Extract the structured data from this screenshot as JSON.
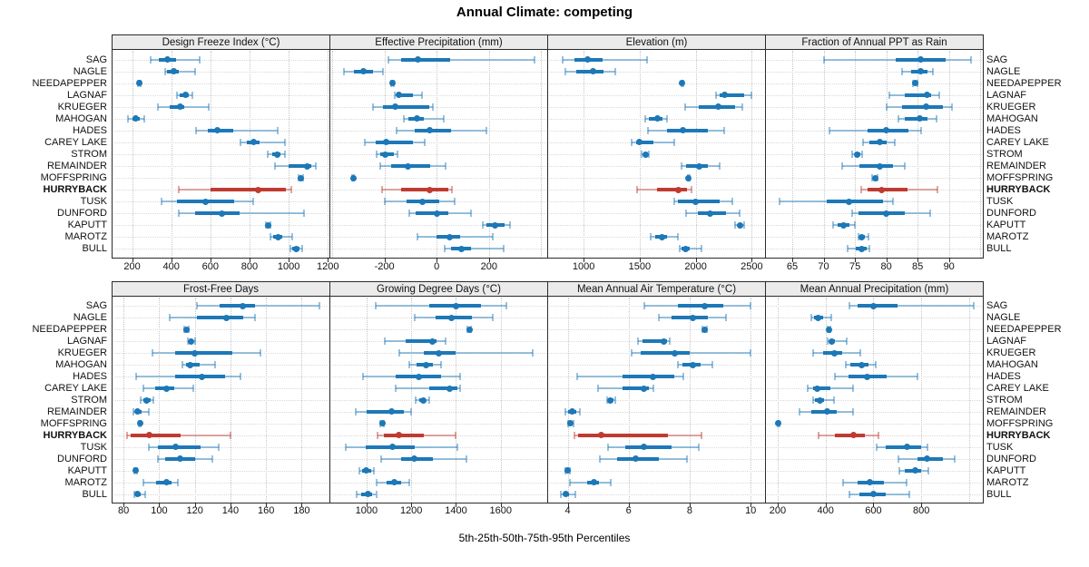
{
  "title": "Annual Climate: competing",
  "footer": "5th-25th-50th-75th-95th Percentiles",
  "colors": {
    "series_blue": "#1d78b7",
    "series_blue_light": "rgba(29,120,183,0.45)",
    "highlight_red": "#bf3b32",
    "highlight_red_light": "rgba(191,59,50,0.45)",
    "header_bg": "#ebebeb",
    "gridline": "#c6c6c6",
    "border": "#2b2b2b"
  },
  "chart_data": {
    "type": "dotplot-percentiles",
    "percentiles": [
      "5th",
      "25th",
      "50th",
      "75th",
      "95th"
    ],
    "highlight_site": "HURRYBACK",
    "sites": [
      "SAG",
      "NAGLE",
      "NEEDAPEPPER",
      "LAGNAF",
      "KRUEGER",
      "MAHOGAN",
      "HADES",
      "CAREY LAKE",
      "STROM",
      "REMAINDER",
      "MOFFSPRING",
      "HURRYBACK",
      "TUSK",
      "DUNFORD",
      "KAPUTT",
      "MAROTZ",
      "BULL"
    ],
    "panels": [
      {
        "title": "Design Freeze Index (°C)",
        "row": 0,
        "col": 0,
        "xlim": [
          100,
          1208
        ],
        "ticks": [
          200,
          400,
          600,
          800,
          1000,
          1200
        ],
        "gridlines": [
          200,
          400,
          600,
          800,
          1000,
          1200
        ],
        "values": [
          [
            295,
            335,
            380,
            425,
            545
          ],
          [
            370,
            380,
            412,
            440,
            520
          ],
          [
            228,
            232,
            235,
            239,
            243
          ],
          [
            430,
            445,
            475,
            490,
            510
          ],
          [
            330,
            390,
            445,
            465,
            590
          ],
          [
            180,
            200,
            220,
            240,
            262
          ],
          [
            525,
            585,
            635,
            715,
            945
          ],
          [
            755,
            785,
            820,
            850,
            980
          ],
          [
            895,
            915,
            940,
            958,
            980
          ],
          [
            930,
            1000,
            1095,
            1115,
            1140
          ],
          [
            1050,
            1056,
            1062,
            1068,
            1074
          ],
          [
            440,
            600,
            845,
            985,
            1015
          ],
          [
            350,
            430,
            575,
            720,
            820
          ],
          [
            440,
            520,
            660,
            750,
            1080
          ],
          [
            885,
            890,
            895,
            900,
            905
          ],
          [
            905,
            920,
            945,
            965,
            1020
          ],
          [
            1010,
            1020,
            1040,
            1055,
            1068
          ]
        ]
      },
      {
        "title": "Effective Precipitation (mm)",
        "row": 0,
        "col": 1,
        "xlim": [
          -407,
          423
        ],
        "ticks": [
          -200,
          0,
          200
        ],
        "gridlines": [
          -400,
          -200,
          0,
          200,
          400
        ],
        "values": [
          [
            -185,
            -135,
            -73,
            50,
            375
          ],
          [
            -355,
            -315,
            -280,
            -245,
            -205
          ],
          [
            -175,
            -172,
            -170,
            -167,
            -164
          ],
          [
            -160,
            -152,
            -144,
            -92,
            -55
          ],
          [
            -245,
            -205,
            -160,
            -30,
            -13
          ],
          [
            -125,
            -108,
            -75,
            -48,
            28
          ],
          [
            -155,
            -85,
            -27,
            55,
            190
          ],
          [
            -275,
            -235,
            -195,
            -90,
            -45
          ],
          [
            -230,
            -215,
            -197,
            -165,
            -150
          ],
          [
            -215,
            -175,
            -110,
            -25,
            35
          ],
          [
            -324,
            -322,
            -320,
            -318,
            -316
          ],
          [
            -210,
            -135,
            -25,
            45,
            57
          ],
          [
            -200,
            -115,
            -55,
            10,
            70
          ],
          [
            -105,
            -80,
            0,
            45,
            130
          ],
          [
            175,
            192,
            225,
            260,
            280
          ],
          [
            -75,
            0,
            50,
            90,
            215
          ],
          [
            30,
            55,
            95,
            130,
            255
          ]
        ]
      },
      {
        "title": "Elevation (m)",
        "row": 0,
        "col": 2,
        "xlim": [
          683,
          2618
        ],
        "ticks": [
          1000,
          1500,
          2000,
          2500
        ],
        "gridlines": [
          1000,
          1500,
          2000,
          2500
        ],
        "values": [
          [
            810,
            915,
            1035,
            1170,
            1565
          ],
          [
            840,
            930,
            1080,
            1180,
            1280
          ],
          [
            1872,
            1876,
            1880,
            1884,
            1888
          ],
          [
            2180,
            2210,
            2255,
            2430,
            2500
          ],
          [
            1905,
            2030,
            2200,
            2350,
            2415
          ],
          [
            1550,
            1585,
            1655,
            1700,
            1740
          ],
          [
            1570,
            1745,
            1885,
            2105,
            2255
          ],
          [
            1430,
            1465,
            1495,
            1625,
            1805
          ],
          [
            1520,
            1535,
            1550,
            1565,
            1585
          ],
          [
            1875,
            1910,
            2030,
            2110,
            2215
          ],
          [
            1928,
            1932,
            1936,
            1940,
            1944
          ],
          [
            1475,
            1655,
            1845,
            1920,
            1960
          ],
          [
            1810,
            1840,
            2000,
            2215,
            2325
          ],
          [
            1910,
            2020,
            2125,
            2270,
            2390
          ],
          [
            2350,
            2375,
            2395,
            2415,
            2430
          ],
          [
            1595,
            1640,
            1700,
            1745,
            1840
          ],
          [
            1855,
            1870,
            1910,
            1950,
            2050
          ]
        ]
      },
      {
        "title": "Fraction of Annual PPT as Rain",
        "row": 0,
        "col": 3,
        "xlim": [
          60.8,
          95.4
        ],
        "ticks": [
          65,
          70,
          75,
          80,
          85,
          90
        ],
        "gridlines": [
          65,
          70,
          75,
          80,
          85,
          90,
          95
        ],
        "values": [
          [
            70,
            81.5,
            85.5,
            89.5,
            93.5
          ],
          [
            82.5,
            84,
            85.5,
            86.5,
            87.5
          ],
          [
            84.2,
            84.4,
            84.6,
            84.8,
            85
          ],
          [
            80.5,
            83,
            86.5,
            87.2,
            88.5
          ],
          [
            80,
            82.5,
            86.3,
            89,
            90.5
          ],
          [
            82,
            83,
            85.3,
            86.6,
            88
          ],
          [
            71,
            77,
            80,
            83.5,
            85.5
          ],
          [
            76.3,
            77.3,
            79,
            80,
            81.3
          ],
          [
            74.6,
            75,
            75.4,
            75.8,
            76.2
          ],
          [
            73,
            75.7,
            79,
            81,
            83
          ],
          [
            77.8,
            78,
            78.2,
            78.4,
            78.6
          ],
          [
            76,
            77,
            79.2,
            83.4,
            88.2
          ],
          [
            63,
            70.5,
            74,
            79.5,
            81
          ],
          [
            74.5,
            75.5,
            80,
            83,
            87
          ],
          [
            71.5,
            72.2,
            73.2,
            74.1,
            75
          ],
          [
            75.5,
            75.8,
            76.1,
            76.6,
            77.1
          ],
          [
            73.8,
            75.2,
            76.1,
            76.9,
            77.3
          ]
        ]
      },
      {
        "title": "Frost-Free Days",
        "row": 1,
        "col": 0,
        "xlim": [
          73.8,
          195.6
        ],
        "ticks": [
          80,
          100,
          120,
          140,
          160,
          180
        ],
        "gridlines": [
          80,
          100,
          120,
          140,
          160,
          180
        ],
        "values": [
          [
            121,
            134,
            147,
            154,
            190
          ],
          [
            106,
            121,
            138,
            147,
            154
          ],
          [
            114,
            114.7,
            115.3,
            116,
            116.6
          ],
          [
            116,
            117,
            118,
            119,
            120.3
          ],
          [
            96,
            109,
            120,
            141,
            157
          ],
          [
            113,
            115,
            117.3,
            122.6,
            131.3
          ],
          [
            87,
            109,
            124,
            137,
            145.5
          ],
          [
            91.3,
            97.8,
            104,
            108.7,
            119
          ],
          [
            89.5,
            91,
            93,
            95,
            96.6
          ],
          [
            85.7,
            86.5,
            88,
            90,
            94
          ],
          [
            88.5,
            88.8,
            89.1,
            89.4,
            89.7
          ],
          [
            82,
            84,
            94.5,
            112,
            140
          ],
          [
            94,
            99.5,
            109.4,
            123,
            133.2
          ],
          [
            99.3,
            103.4,
            112,
            120.3,
            129.8
          ],
          [
            86.2,
            86.6,
            87,
            87.4,
            87.8
          ],
          [
            91.3,
            98.3,
            104,
            107,
            110.3
          ],
          [
            85.9,
            86.8,
            87.6,
            89.5,
            92
          ]
        ]
      },
      {
        "title": "Growing Degree Days (°C)",
        "row": 1,
        "col": 1,
        "xlim": [
          838,
          1808
        ],
        "ticks": [
          1000,
          1200,
          1400,
          1600
        ],
        "gridlines": [
          1000,
          1200,
          1400,
          1600
        ],
        "values": [
          [
            1040,
            1280,
            1400,
            1510,
            1625
          ],
          [
            1215,
            1310,
            1380,
            1470,
            1565
          ],
          [
            1452,
            1456,
            1460,
            1464,
            1468
          ],
          [
            1080,
            1175,
            1295,
            1312,
            1355
          ],
          [
            1145,
            1255,
            1325,
            1400,
            1745
          ],
          [
            1190,
            1222,
            1265,
            1295,
            1332
          ],
          [
            985,
            1130,
            1235,
            1335,
            1420
          ],
          [
            1130,
            1280,
            1370,
            1405,
            1417
          ],
          [
            1221,
            1236,
            1252,
            1266,
            1281
          ],
          [
            950,
            1002,
            1112,
            1168,
            1198
          ],
          [
            1063,
            1066,
            1070,
            1074,
            1077
          ],
          [
            1050,
            1078,
            1145,
            1255,
            1400
          ],
          [
            905,
            995,
            1115,
            1215,
            1405
          ],
          [
            1065,
            1155,
            1215,
            1295,
            1445
          ],
          [
            966,
            980,
            997,
            1020,
            1034
          ],
          [
            1043,
            1088,
            1124,
            1155,
            1190
          ],
          [
            956,
            978,
            1005,
            1025,
            1043
          ]
        ]
      },
      {
        "title": "Mean Annual Air Temperature (°C)",
        "row": 1,
        "col": 2,
        "xlim": [
          3.36,
          10.47
        ],
        "ticks": [
          4,
          6,
          8,
          10
        ],
        "gridlines": [
          4,
          6,
          8,
          10
        ],
        "values": [
          [
            6.5,
            7.6,
            8.5,
            9.1,
            10
          ],
          [
            7,
            7.4,
            8.1,
            8.6,
            9.2
          ],
          [
            8.42,
            8.46,
            8.5,
            8.54,
            8.58
          ],
          [
            6.3,
            6.45,
            7.15,
            7.25,
            7.35
          ],
          [
            6.1,
            6.4,
            7.5,
            8,
            10
          ],
          [
            7.6,
            7.75,
            8.1,
            8.35,
            8.75
          ],
          [
            4.3,
            5.8,
            6.8,
            7.5,
            7.8
          ],
          [
            5,
            5.8,
            6.5,
            6.65,
            6.8
          ],
          [
            5.28,
            5.34,
            5.41,
            5.49,
            5.57
          ],
          [
            3.93,
            4.02,
            4.15,
            4.28,
            4.39
          ],
          [
            4.02,
            4.06,
            4.1,
            4.14,
            4.18
          ],
          [
            4.23,
            4.33,
            5.1,
            7.3,
            8.4
          ],
          [
            5.33,
            5.88,
            6.5,
            7.4,
            8.3
          ],
          [
            5.06,
            5.63,
            6.24,
            7,
            7.9
          ],
          [
            3.92,
            3.96,
            4,
            4.04,
            4.08
          ],
          [
            4.07,
            4.64,
            4.85,
            5.04,
            5.41
          ],
          [
            3.77,
            3.86,
            3.93,
            4.05,
            4.25
          ]
        ]
      },
      {
        "title": "Mean Annual Precipitation (mm)",
        "row": 1,
        "col": 3,
        "xlim": [
          151,
          1057
        ],
        "ticks": [
          200,
          400,
          600,
          800
        ],
        "gridlines": [
          200,
          400,
          600,
          800,
          1000
        ],
        "values": [
          [
            500,
            535,
            600,
            700,
            1020
          ],
          [
            340,
            352,
            370,
            390,
            425
          ],
          [
            410,
            412,
            415,
            418,
            421
          ],
          [
            408,
            415,
            425,
            440,
            490
          ],
          [
            350,
            390,
            438,
            470,
            545
          ],
          [
            485,
            505,
            550,
            580,
            610
          ],
          [
            440,
            495,
            575,
            655,
            785
          ],
          [
            325,
            348,
            366,
            420,
            515
          ],
          [
            348,
            357,
            378,
            395,
            434
          ],
          [
            290,
            340,
            405,
            445,
            515
          ],
          [
            200,
            202,
            204,
            206,
            208
          ],
          [
            370,
            440,
            515,
            565,
            620
          ],
          [
            615,
            650,
            740,
            800,
            825
          ],
          [
            705,
            785,
            825,
            890,
            940
          ],
          [
            710,
            730,
            775,
            800,
            830
          ],
          [
            475,
            535,
            585,
            645,
            740
          ],
          [
            500,
            540,
            600,
            650,
            750
          ]
        ]
      }
    ]
  }
}
